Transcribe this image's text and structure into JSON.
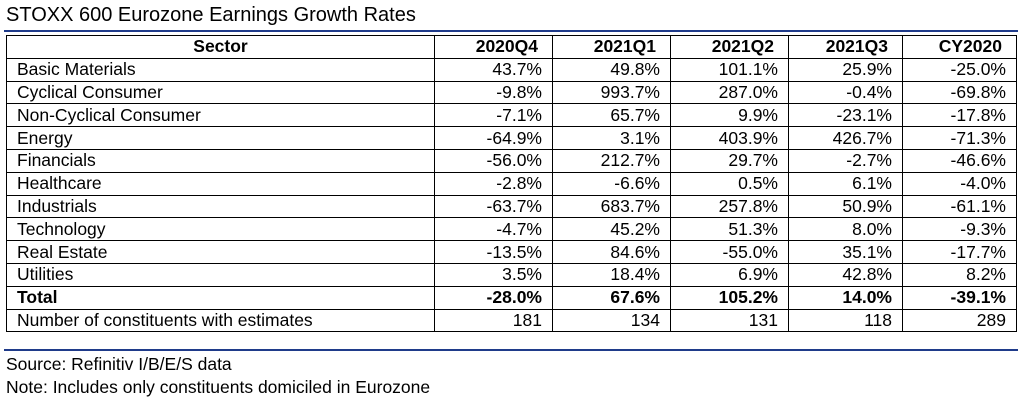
{
  "title": "STOXX 600 Eurozone Earnings Growth Rates",
  "accent_color": "#1f3b8a",
  "chart_data": {
    "type": "table",
    "title": "STOXX 600 Eurozone Earnings Growth Rates",
    "columns": [
      "Sector",
      "2020Q4",
      "2021Q1",
      "2021Q2",
      "2021Q3",
      "CY2020"
    ],
    "rows": [
      {
        "sector": "Basic Materials",
        "values": [
          "43.7%",
          "49.8%",
          "101.1%",
          "25.9%",
          "-25.0%"
        ]
      },
      {
        "sector": "Cyclical Consumer",
        "values": [
          "-9.8%",
          "993.7%",
          "287.0%",
          "-0.4%",
          "-69.8%"
        ]
      },
      {
        "sector": "Non-Cyclical Consumer",
        "values": [
          "-7.1%",
          "65.7%",
          "9.9%",
          "-23.1%",
          "-17.8%"
        ]
      },
      {
        "sector": "Energy",
        "values": [
          "-64.9%",
          "3.1%",
          "403.9%",
          "426.7%",
          "-71.3%"
        ]
      },
      {
        "sector": "Financials",
        "values": [
          "-56.0%",
          "212.7%",
          "29.7%",
          "-2.7%",
          "-46.6%"
        ]
      },
      {
        "sector": "Healthcare",
        "values": [
          "-2.8%",
          "-6.6%",
          "0.5%",
          "6.1%",
          "-4.0%"
        ]
      },
      {
        "sector": "Industrials",
        "values": [
          "-63.7%",
          "683.7%",
          "257.8%",
          "50.9%",
          "-61.1%"
        ]
      },
      {
        "sector": "Technology",
        "values": [
          "-4.7%",
          "45.2%",
          "51.3%",
          "8.0%",
          "-9.3%"
        ]
      },
      {
        "sector": "Real Estate",
        "values": [
          "-13.5%",
          "84.6%",
          "-55.0%",
          "35.1%",
          "-17.7%"
        ]
      },
      {
        "sector": "Utilities",
        "values": [
          "3.5%",
          "18.4%",
          "6.9%",
          "42.8%",
          "8.2%"
        ]
      }
    ],
    "total": {
      "sector": "Total",
      "values": [
        "-28.0%",
        "67.6%",
        "105.2%",
        "14.0%",
        "-39.1%"
      ]
    },
    "constituents": {
      "sector": "Number of constituents with estimates",
      "values": [
        "181",
        "134",
        "131",
        "118",
        "289"
      ]
    }
  },
  "footer": {
    "source": "Source: Refinitiv I/B/E/S data",
    "note": "Note: Includes only constituents domiciled in Eurozone"
  }
}
